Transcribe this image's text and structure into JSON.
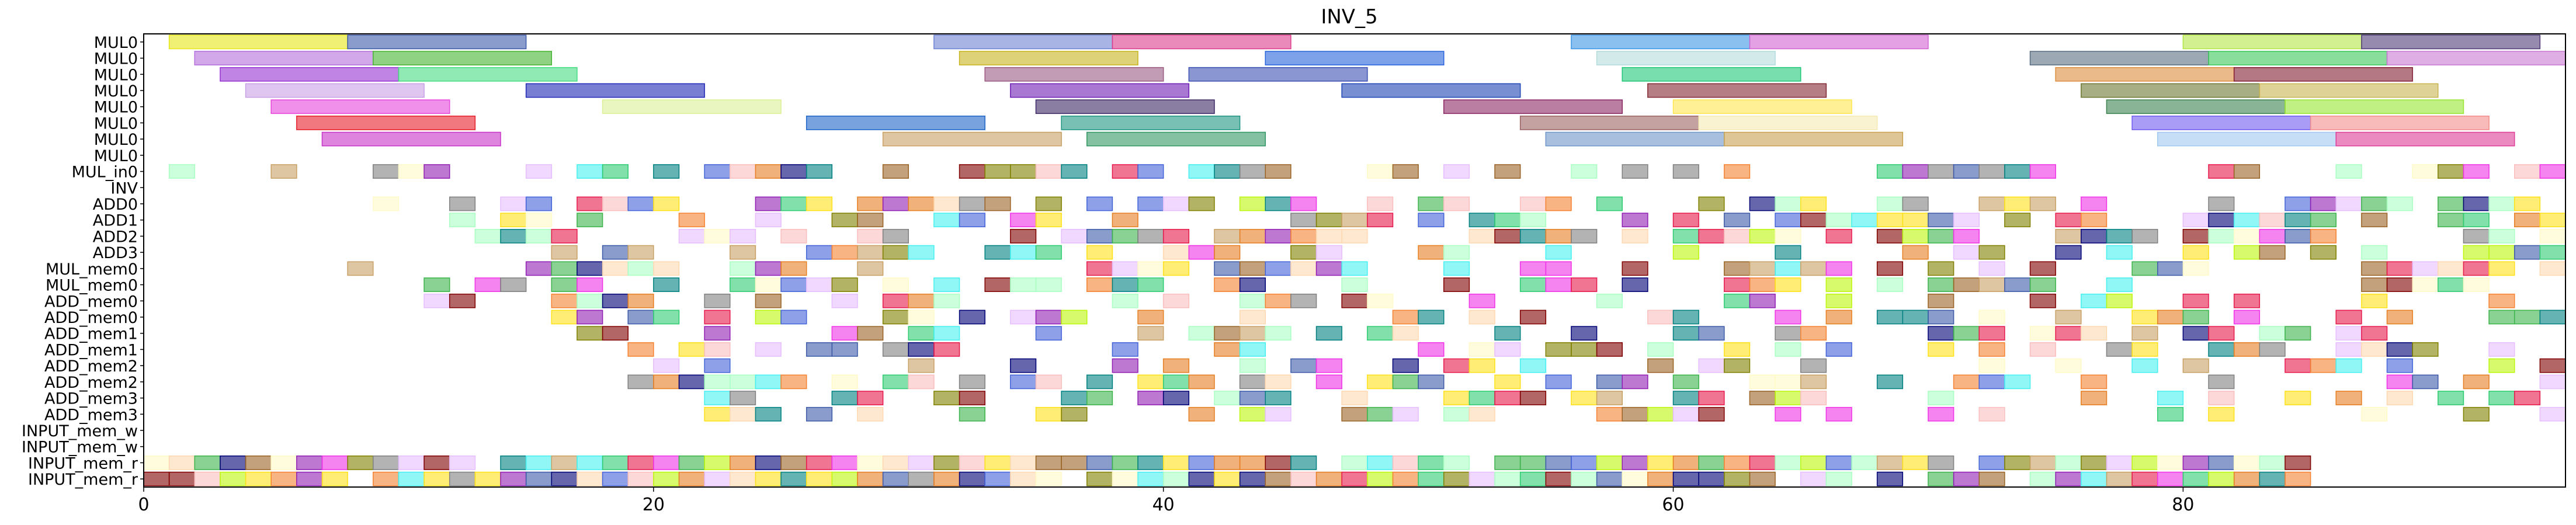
{
  "chart_data": {
    "type": "gantt",
    "title": "INV_5",
    "xlabel": "",
    "ylabel": "",
    "xlim": [
      0,
      95
    ],
    "xticks": [
      0,
      20,
      40,
      60,
      80
    ],
    "grid": false,
    "rows": [
      "MUL0",
      "MUL0",
      "MUL0",
      "MUL0",
      "MUL0",
      "MUL0",
      "MUL0",
      "MUL0",
      "MUL_in0",
      "INV",
      "ADD0",
      "ADD1",
      "ADD2",
      "ADD3",
      "MUL_mem0",
      "MUL_mem0",
      "ADD_mem0",
      "ADD_mem0",
      "ADD_mem1",
      "ADD_mem1",
      "ADD_mem2",
      "ADD_mem2",
      "ADD_mem3",
      "ADD_mem3",
      "INPUT_mem_w",
      "INPUT_mem_w",
      "INPUT_mem_r",
      "INPUT_mem_r"
    ],
    "long_bars": [
      {
        "row": 0,
        "bars": [
          [
            1,
            8,
            "#e6e619"
          ],
          [
            8,
            15,
            "#3c5aa8"
          ],
          [
            31,
            38,
            "#6e82d2"
          ],
          [
            38,
            45,
            "#dc3c8c"
          ],
          [
            56,
            63,
            "#3c96e6"
          ],
          [
            63,
            70,
            "#d264d2"
          ],
          [
            80,
            87,
            "#b4e646"
          ],
          [
            87,
            94,
            "#503c78"
          ]
        ]
      },
      {
        "row": 1,
        "bars": [
          [
            2,
            9,
            "#b46edc"
          ],
          [
            9,
            16,
            "#46b432"
          ],
          [
            32,
            39,
            "#c8b41e"
          ],
          [
            44,
            51,
            "#2864dc"
          ],
          [
            57,
            64,
            "#b4dcdc"
          ],
          [
            74,
            81,
            "#5a6e82"
          ],
          [
            81,
            88,
            "#3cc85a"
          ],
          [
            88,
            95,
            "#c878d2"
          ]
        ]
      },
      {
        "row": 2,
        "bars": [
          [
            3,
            10,
            "#9632d2"
          ],
          [
            10,
            17,
            "#46dc82"
          ],
          [
            33,
            40,
            "#9a5a82"
          ],
          [
            41,
            48,
            "#3c50b4"
          ],
          [
            58,
            65,
            "#1ec878"
          ],
          [
            75,
            82,
            "#dc8c3c"
          ],
          [
            82,
            89,
            "#821e32"
          ]
        ]
      },
      {
        "row": 3,
        "bars": [
          [
            4,
            11,
            "#c8a0e6"
          ],
          [
            15,
            22,
            "#1e28b4"
          ],
          [
            34,
            41,
            "#6e1eb4"
          ],
          [
            47,
            54,
            "#1e46b4"
          ],
          [
            59,
            66,
            "#822832"
          ],
          [
            76,
            83,
            "#6e7832"
          ],
          [
            83,
            90,
            "#c8b450"
          ]
        ]
      },
      {
        "row": 4,
        "bars": [
          [
            5,
            12,
            "#e646dc"
          ],
          [
            18,
            25,
            "#dcf096"
          ],
          [
            35,
            42,
            "#3c2864"
          ],
          [
            51,
            58,
            "#8c2864"
          ],
          [
            60,
            67,
            "#ffe650"
          ],
          [
            77,
            84,
            "#3c8250"
          ],
          [
            84,
            91,
            "#96e632"
          ]
        ]
      },
      {
        "row": 5,
        "bars": [
          [
            6,
            13,
            "#e61e28"
          ],
          [
            26,
            33,
            "#1e64c8"
          ],
          [
            36,
            43,
            "#1e9682"
          ],
          [
            54,
            61,
            "#9c6464"
          ],
          [
            61,
            68,
            "#f5ebb4"
          ],
          [
            78,
            85,
            "#6e5af0"
          ],
          [
            85,
            92,
            "#f58c8c"
          ]
        ]
      },
      {
        "row": 6,
        "bars": [
          [
            7,
            14,
            "#c832c8"
          ],
          [
            29,
            36,
            "#c8a064"
          ],
          [
            37,
            44,
            "#329664"
          ],
          [
            55,
            62,
            "#6e96c8"
          ],
          [
            62,
            69,
            "#c8a050"
          ],
          [
            79,
            86,
            "#a0c8f0"
          ],
          [
            86,
            93,
            "#dc3c96"
          ]
        ]
      }
    ],
    "small_blocks_note": "Dense scatter of single-cycle colored blocks on rows MUL_in0 through INPUT_mem_r",
    "palette": [
      "#e6194b",
      "#3cb44b",
      "#ffe119",
      "#4363d8",
      "#f58231",
      "#911eb4",
      "#46f0f0",
      "#f032e6",
      "#bcf60c",
      "#fabebe",
      "#008080",
      "#e6beff",
      "#9a6324",
      "#fffac8",
      "#800000",
      "#aaffc3",
      "#808000",
      "#ffd8b1",
      "#000075",
      "#808080",
      "#3c5aa8",
      "#c8a064",
      "#2ecc71",
      "#e67e22"
    ]
  }
}
